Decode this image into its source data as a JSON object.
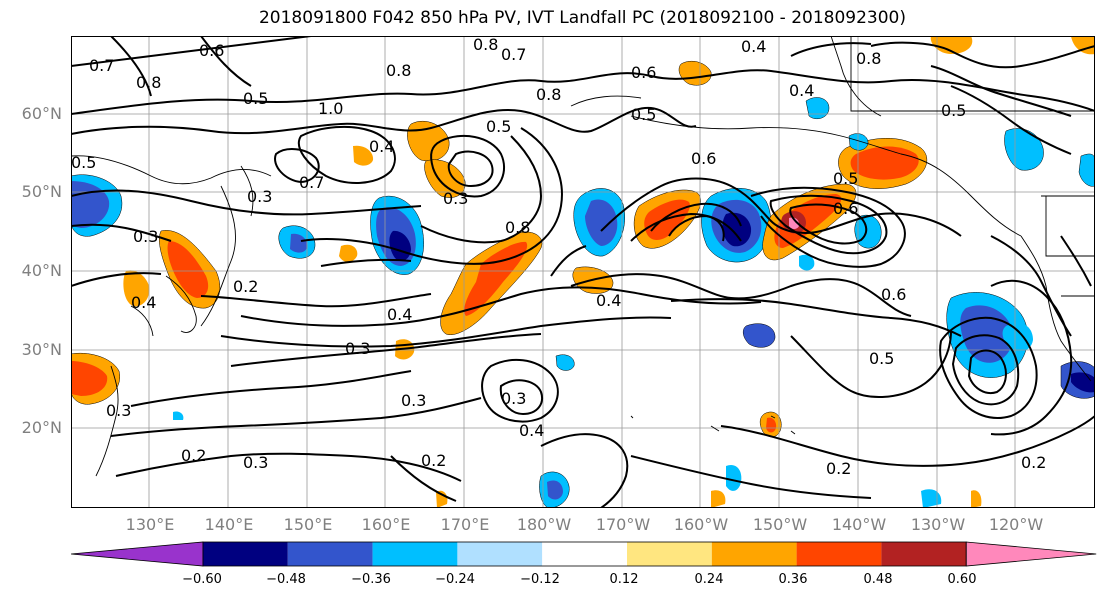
{
  "title": "2018091800 F042 850 hPa PV, IVT Landfall PC (2018092100 - 2018092300)",
  "lat_labels": [
    "60°N",
    "50°N",
    "40°N",
    "30°N",
    "20°N"
  ],
  "lon_labels": [
    "130°E",
    "140°E",
    "150°E",
    "160°E",
    "170°E",
    "180°W",
    "170°W",
    "160°W",
    "150°W",
    "140°W",
    "130°W",
    "120°W"
  ],
  "contour_labels": [
    "0.8",
    "0.7",
    "0.6",
    "0.7",
    "0.8",
    "0.5",
    "1.0",
    "0.5",
    "0.7",
    "0.3",
    "0.4",
    "0.3",
    "0.2",
    "0.8",
    "0.5",
    "0.8",
    "0.6",
    "0.4",
    "0.3",
    "0.4",
    "0.5",
    "0.8",
    "0.4",
    "0.6",
    "0.5",
    "0.6",
    "0.4",
    "0.6",
    "0.5",
    "0.3",
    "0.2",
    "0.3",
    "0.3",
    "0.4",
    "0.3",
    "0.2",
    "0.2",
    "0.2",
    "0.3",
    "0.4",
    "0.5",
    "0.8"
  ],
  "colorbar": {
    "tick_labels": [
      "−0.60",
      "−0.48",
      "−0.36",
      "−0.24",
      "−0.12",
      "0.12",
      "0.24",
      "0.36",
      "0.48",
      "0.60"
    ],
    "colors": [
      "#9933cc",
      "#000080",
      "#3355cc",
      "#00bfff",
      "#b0e0ff",
      "#ffffff",
      "#ffe680",
      "#ffa500",
      "#ff4500",
      "#b22222",
      "#ff88bb"
    ]
  },
  "chart_data": {
    "type": "heatmap",
    "variable": "850 hPa PV, IVT Landfall PC",
    "lat_ticks": [
      60,
      50,
      40,
      30,
      20
    ],
    "lon_ticks": [
      "130E",
      "140E",
      "150E",
      "160E",
      "170E",
      "180W",
      "170W",
      "160W",
      "150W",
      "140W",
      "130W",
      "120W"
    ],
    "shading_levels": [
      -0.6,
      -0.48,
      -0.36,
      -0.24,
      -0.12,
      0.12,
      0.24,
      0.36,
      0.48,
      0.6
    ],
    "contour_levels": [
      0.2,
      0.3,
      0.4,
      0.5,
      0.6,
      0.7,
      0.8,
      1.0
    ]
  }
}
